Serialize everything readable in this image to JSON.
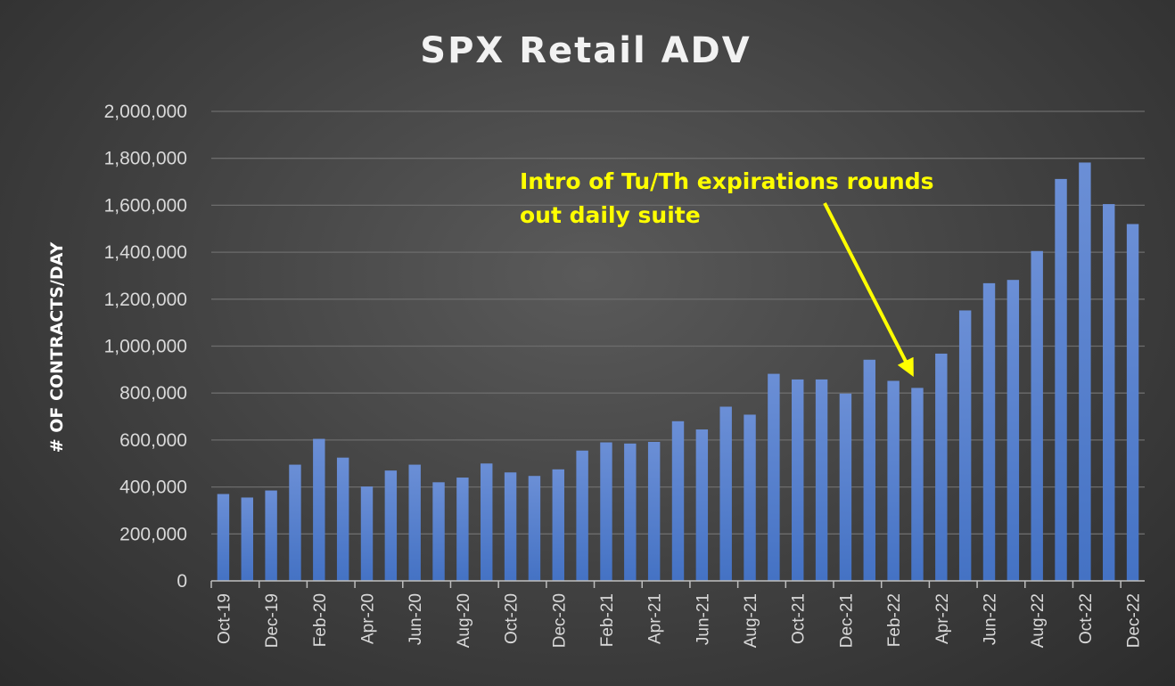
{
  "chart_data": {
    "type": "bar",
    "title": "SPX Retail ADV",
    "xlabel": "",
    "ylabel": "# OF CONTRACTS/DAY",
    "ylim": [
      0,
      2000000
    ],
    "yticks": [
      0,
      200000,
      400000,
      600000,
      800000,
      1000000,
      1200000,
      1400000,
      1600000,
      1800000,
      2000000
    ],
    "ytick_labels": [
      "0",
      "200,000",
      "400,000",
      "600,000",
      "800,000",
      "1,000,000",
      "1,200,000",
      "1,400,000",
      "1,600,000",
      "1,800,000",
      "2,000,000"
    ],
    "grid": true,
    "legend": "none",
    "bar_color": "#4472c4",
    "categories": [
      "Oct-19",
      "Nov-19",
      "Dec-19",
      "Jan-20",
      "Feb-20",
      "Mar-20",
      "Apr-20",
      "May-20",
      "Jun-20",
      "Jul-20",
      "Aug-20",
      "Sep-20",
      "Oct-20",
      "Nov-20",
      "Dec-20",
      "Jan-21",
      "Feb-21",
      "Mar-21",
      "Apr-21",
      "May-21",
      "Jun-21",
      "Jul-21",
      "Aug-21",
      "Sep-21",
      "Oct-21",
      "Nov-21",
      "Dec-21",
      "Jan-22",
      "Feb-22",
      "Mar-22",
      "Apr-22",
      "May-22",
      "Jun-22",
      "Jul-22",
      "Aug-22",
      "Sep-22",
      "Oct-22",
      "Nov-22",
      "Dec-22"
    ],
    "tick_labels": [
      "Oct-19",
      "Dec-19",
      "Feb-20",
      "Apr-20",
      "Jun-20",
      "Aug-20",
      "Oct-20",
      "Dec-20",
      "Feb-21",
      "Apr-21",
      "Jun-21",
      "Aug-21",
      "Oct-21",
      "Dec-21",
      "Feb-22",
      "Apr-22",
      "Jun-22",
      "Aug-22",
      "Oct-22",
      "Dec-22"
    ],
    "values": [
      370000,
      355000,
      385000,
      495000,
      605000,
      525000,
      402000,
      470000,
      495000,
      420000,
      440000,
      500000,
      462000,
      447000,
      475000,
      555000,
      590000,
      585000,
      592000,
      680000,
      645000,
      742000,
      708000,
      882000,
      858000,
      858000,
      798000,
      942000,
      852000,
      822000,
      968000,
      1152000,
      1268000,
      1282000,
      1405000,
      1712000,
      1782000,
      1605000,
      1520000
    ],
    "annotation": {
      "lines": [
        "Intro of Tu/Th expirations rounds",
        "out daily suite"
      ],
      "color": "#ffff00",
      "points_to": "Mar-22"
    }
  }
}
